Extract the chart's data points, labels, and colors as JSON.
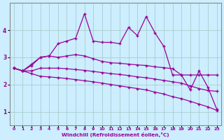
{
  "xlabel": "Windchill (Refroidissement éolien,°C)",
  "x": [
    0,
    1,
    2,
    3,
    4,
    5,
    6,
    7,
    8,
    9,
    10,
    11,
    12,
    13,
    14,
    15,
    16,
    17,
    18,
    19,
    20,
    21,
    22,
    23
  ],
  "line1": [
    2.6,
    2.5,
    2.75,
    3.0,
    3.05,
    3.5,
    3.6,
    3.7,
    4.6,
    3.6,
    3.55,
    3.55,
    3.5,
    4.1,
    3.8,
    4.5,
    3.9,
    3.4,
    2.35,
    2.35,
    1.8,
    2.5,
    1.9,
    1.1
  ],
  "line2": [
    2.6,
    2.5,
    2.7,
    3.0,
    3.05,
    3.0,
    3.05,
    3.1,
    3.05,
    2.95,
    2.85,
    2.8,
    2.78,
    2.75,
    2.72,
    2.7,
    2.65,
    2.62,
    2.58,
    2.35,
    2.35,
    2.35,
    2.35,
    2.35
  ],
  "line3": [
    2.6,
    2.5,
    2.5,
    2.6,
    2.6,
    2.6,
    2.58,
    2.55,
    2.52,
    2.48,
    2.44,
    2.4,
    2.37,
    2.33,
    2.28,
    2.25,
    2.2,
    2.15,
    2.1,
    2.05,
    1.95,
    1.85,
    1.78,
    1.75
  ],
  "line4": [
    2.6,
    2.5,
    2.4,
    2.3,
    2.28,
    2.25,
    2.22,
    2.18,
    2.14,
    2.1,
    2.05,
    2.0,
    1.95,
    1.9,
    1.85,
    1.8,
    1.72,
    1.65,
    1.55,
    1.48,
    1.38,
    1.28,
    1.18,
    1.05
  ],
  "line_color": "#990099",
  "bg_color": "#cceeff",
  "grid_color": "#aacccc",
  "ylim": [
    0.5,
    5.0
  ],
  "yticks": [
    1,
    2,
    3,
    4
  ],
  "xticks": [
    0,
    1,
    2,
    3,
    4,
    5,
    6,
    7,
    8,
    9,
    10,
    11,
    12,
    13,
    14,
    15,
    16,
    17,
    18,
    19,
    20,
    21,
    22,
    23
  ],
  "xlim": [
    -0.5,
    23.5
  ]
}
